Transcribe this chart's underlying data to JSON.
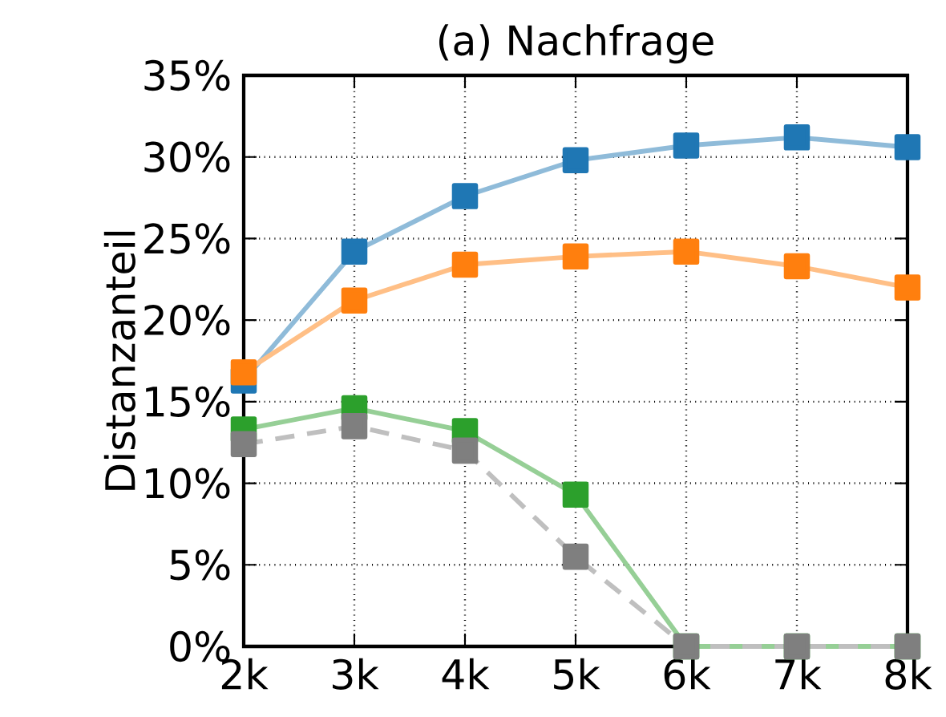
{
  "chart_data": {
    "type": "line",
    "title": "(a) Nachfrage",
    "ylabel": "Distanzanteil",
    "x": [
      2000,
      3000,
      4000,
      5000,
      6000,
      7000,
      8000
    ],
    "xlim": [
      2000,
      8000
    ],
    "xticks": [
      {
        "value": 2000,
        "label": "2k"
      },
      {
        "value": 3000,
        "label": "3k"
      },
      {
        "value": 4000,
        "label": "4k"
      },
      {
        "value": 5000,
        "label": "5k"
      },
      {
        "value": 6000,
        "label": "6k"
      },
      {
        "value": 7000,
        "label": "7k"
      },
      {
        "value": 8000,
        "label": "8k"
      }
    ],
    "ylim": [
      0,
      35
    ],
    "yticks": [
      {
        "value": 0,
        "label": "0%"
      },
      {
        "value": 5,
        "label": "5%"
      },
      {
        "value": 10,
        "label": "10%"
      },
      {
        "value": 15,
        "label": "15%"
      },
      {
        "value": 20,
        "label": "20%"
      },
      {
        "value": 25,
        "label": "25%"
      },
      {
        "value": 30,
        "label": "30%"
      },
      {
        "value": 35,
        "label": "35%"
      }
    ],
    "grid": true,
    "marker": "square",
    "series": [
      {
        "color": "#1f77b4",
        "line_style": "solid",
        "values": [
          16.3,
          24.2,
          27.6,
          29.8,
          30.7,
          31.2,
          30.6
        ]
      },
      {
        "color": "#ff7f0e",
        "line_style": "solid",
        "values": [
          16.8,
          21.2,
          23.4,
          23.9,
          24.2,
          23.3,
          22.0
        ]
      },
      {
        "color": "#2ca02c",
        "line_style": "solid",
        "values": [
          13.3,
          14.6,
          13.2,
          9.3,
          0,
          0,
          0
        ]
      },
      {
        "color": "#7f7f7f",
        "line_style": "dashed",
        "values": [
          12.4,
          13.5,
          12.0,
          5.5,
          0,
          0,
          0
        ]
      }
    ]
  }
}
